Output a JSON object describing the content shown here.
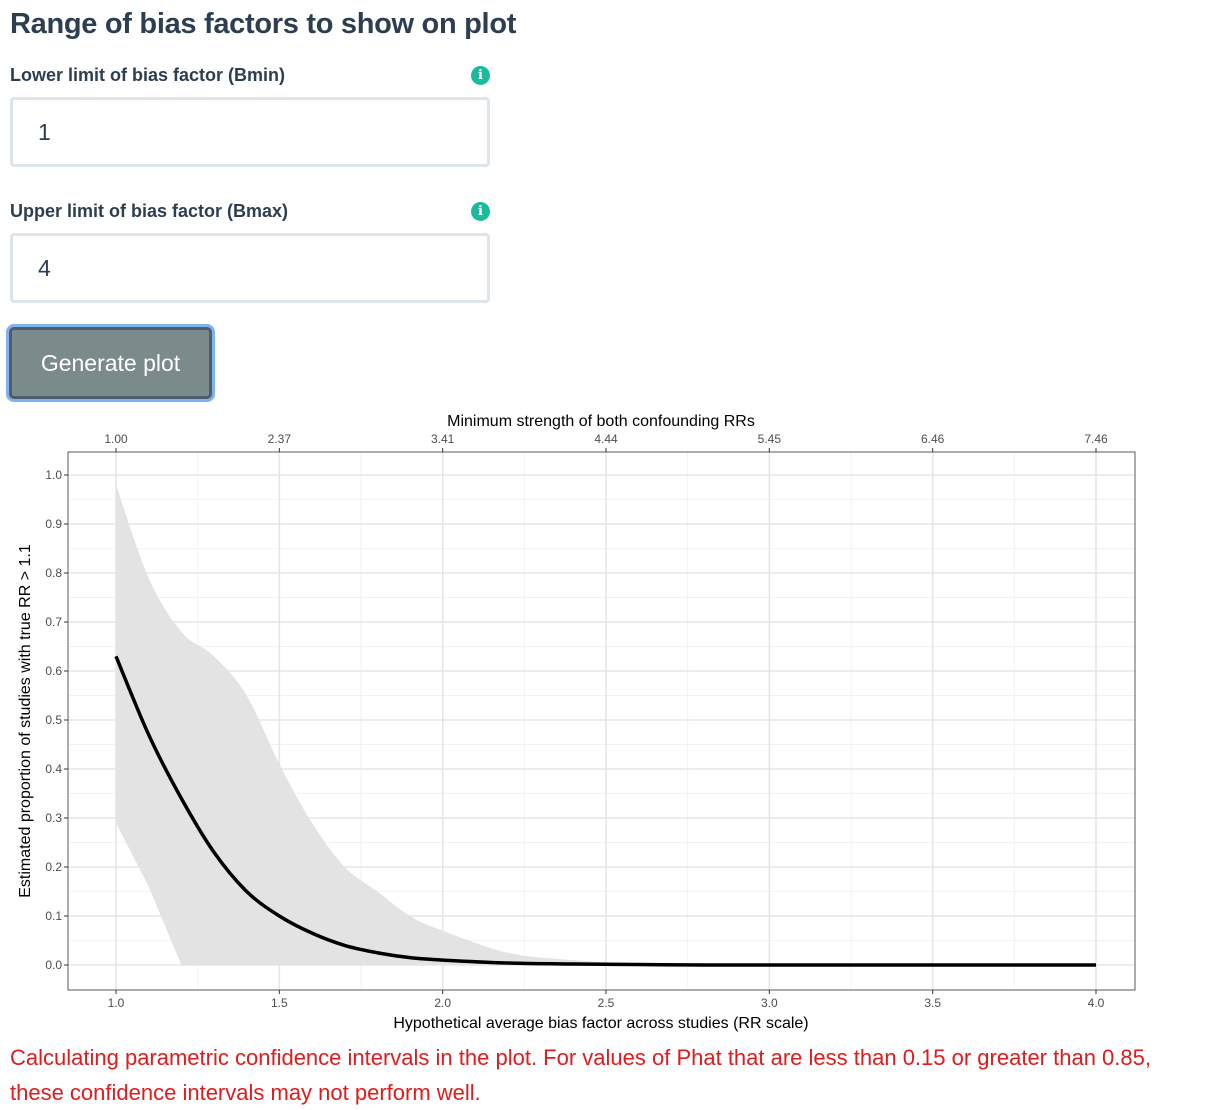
{
  "page": {
    "title": "Range of bias factors to show on plot"
  },
  "bmin": {
    "label": "Lower limit of bias factor (Bmin)",
    "value": "1",
    "icon": "info-icon"
  },
  "bmax": {
    "label": "Upper limit of bias factor (Bmax)",
    "value": "4",
    "icon": "info-icon"
  },
  "generate_button": {
    "label": "Generate plot"
  },
  "warning": {
    "text": "Calculating parametric confidence intervals in the plot. For values of Phat that are less than 0.15 or greater than 0.85, these confidence intervals may not perform well."
  },
  "colors": {
    "accent": "#18bc9c",
    "button": "#7b8a8b",
    "warning": "#e31a1c",
    "band": "#e3e3e3",
    "line": "#000000"
  },
  "chart_data": {
    "type": "line",
    "title": "",
    "xlabel": "Hypothetical average bias factor across studies (RR scale)",
    "ylabel": "Estimated proportion of studies with true RR > 1.1",
    "secondary_xlabel": "Minimum strength of both confounding RRs",
    "xlim": [
      1.0,
      4.0
    ],
    "ylim": [
      0.0,
      1.0
    ],
    "x_ticks": [
      "1.0",
      "1.5",
      "2.0",
      "2.5",
      "3.0",
      "3.5",
      "4.0"
    ],
    "x_tick_values": [
      1.0,
      1.5,
      2.0,
      2.5,
      3.0,
      3.5,
      4.0
    ],
    "secondary_x_ticks": [
      "1.00",
      "2.37",
      "3.41",
      "4.44",
      "5.45",
      "6.46",
      "7.46"
    ],
    "y_ticks": [
      "0.0",
      "0.1",
      "0.2",
      "0.3",
      "0.4",
      "0.5",
      "0.6",
      "0.7",
      "0.8",
      "0.9",
      "1.0"
    ],
    "y_tick_values": [
      0.0,
      0.1,
      0.2,
      0.3,
      0.4,
      0.5,
      0.6,
      0.7,
      0.8,
      0.9,
      1.0
    ],
    "grid": true,
    "series": [
      {
        "x": [
          1.0,
          1.1,
          1.2,
          1.3,
          1.4,
          1.5,
          1.6,
          1.7,
          1.8,
          1.9,
          2.0,
          2.2,
          2.4,
          2.6,
          2.8,
          3.0,
          3.5,
          4.0
        ],
        "values": [
          0.63,
          0.47,
          0.34,
          0.23,
          0.15,
          0.1,
          0.065,
          0.04,
          0.025,
          0.015,
          0.01,
          0.004,
          0.002,
          0.001,
          0.0,
          0.0,
          0.0,
          0.0
        ]
      }
    ],
    "confidence_band": {
      "x": [
        1.0,
        1.1,
        1.2,
        1.3,
        1.4,
        1.5,
        1.6,
        1.7,
        1.8,
        1.9,
        2.0,
        2.2,
        2.4,
        2.6,
        2.8,
        3.0,
        3.5,
        4.0
      ],
      "lower": [
        0.29,
        0.16,
        0.0,
        0.0,
        0.0,
        0.0,
        0.0,
        0.0,
        0.0,
        0.0,
        0.0,
        0.0,
        0.0,
        0.0,
        0.0,
        0.0,
        0.0,
        0.0
      ],
      "upper": [
        0.98,
        0.79,
        0.68,
        0.63,
        0.55,
        0.41,
        0.29,
        0.2,
        0.15,
        0.1,
        0.07,
        0.025,
        0.01,
        0.003,
        0.001,
        0.0,
        0.0,
        0.0
      ]
    }
  }
}
